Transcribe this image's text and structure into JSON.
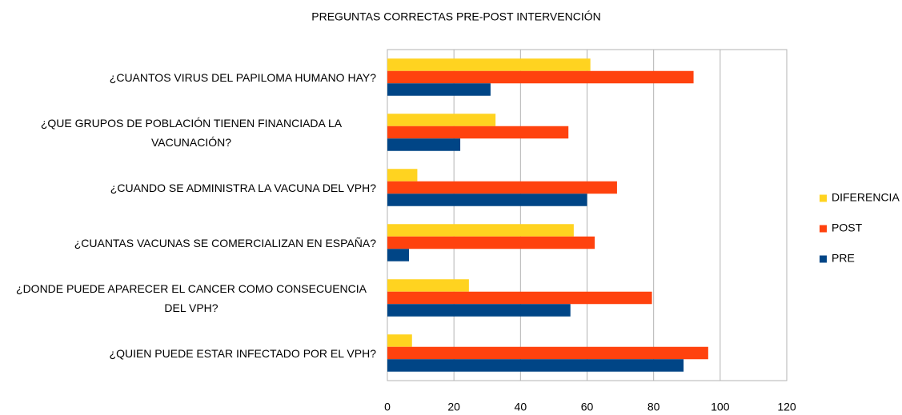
{
  "chart_data": {
    "type": "barh",
    "title": "PREGUNTAS CORRECTAS PRE-POST INTERVENCIÓN",
    "categories": [
      "¿CUANTOS VIRUS DEL PAPILOMA HUMANO HAY?",
      "¿QUE GRUPOS DE POBLACIÓN TIENEN FINANCIADA LA VACUNACIÓN?",
      "¿CUANDO SE ADMINISTRA LA VACUNA DEL VPH?",
      "¿CUANTAS VACUNAS SE COMERCIALIZAN EN ESPAÑA?",
      "¿DONDE PUEDE APARECER EL CANCER COMO CONSECUENCIA DEL VPH?",
      "¿QUIEN PUEDE ESTAR INFECTADO POR EL VPH?"
    ],
    "series": [
      {
        "name": "DIFERENCIA",
        "color": "#ffd320",
        "values": [
          61,
          32.5,
          9,
          56,
          24.5,
          7.4
        ]
      },
      {
        "name": "POST",
        "color": "#ff420e",
        "values": [
          92,
          54.4,
          69,
          62.3,
          79.5,
          96.4
        ]
      },
      {
        "name": "PRE",
        "color": "#004586",
        "values": [
          31,
          21.9,
          60,
          6.5,
          55,
          89
        ]
      }
    ],
    "xlim": [
      0,
      120
    ],
    "xticks": [
      0,
      20,
      40,
      60,
      80,
      100,
      120
    ],
    "grid": true,
    "legend": "right"
  }
}
